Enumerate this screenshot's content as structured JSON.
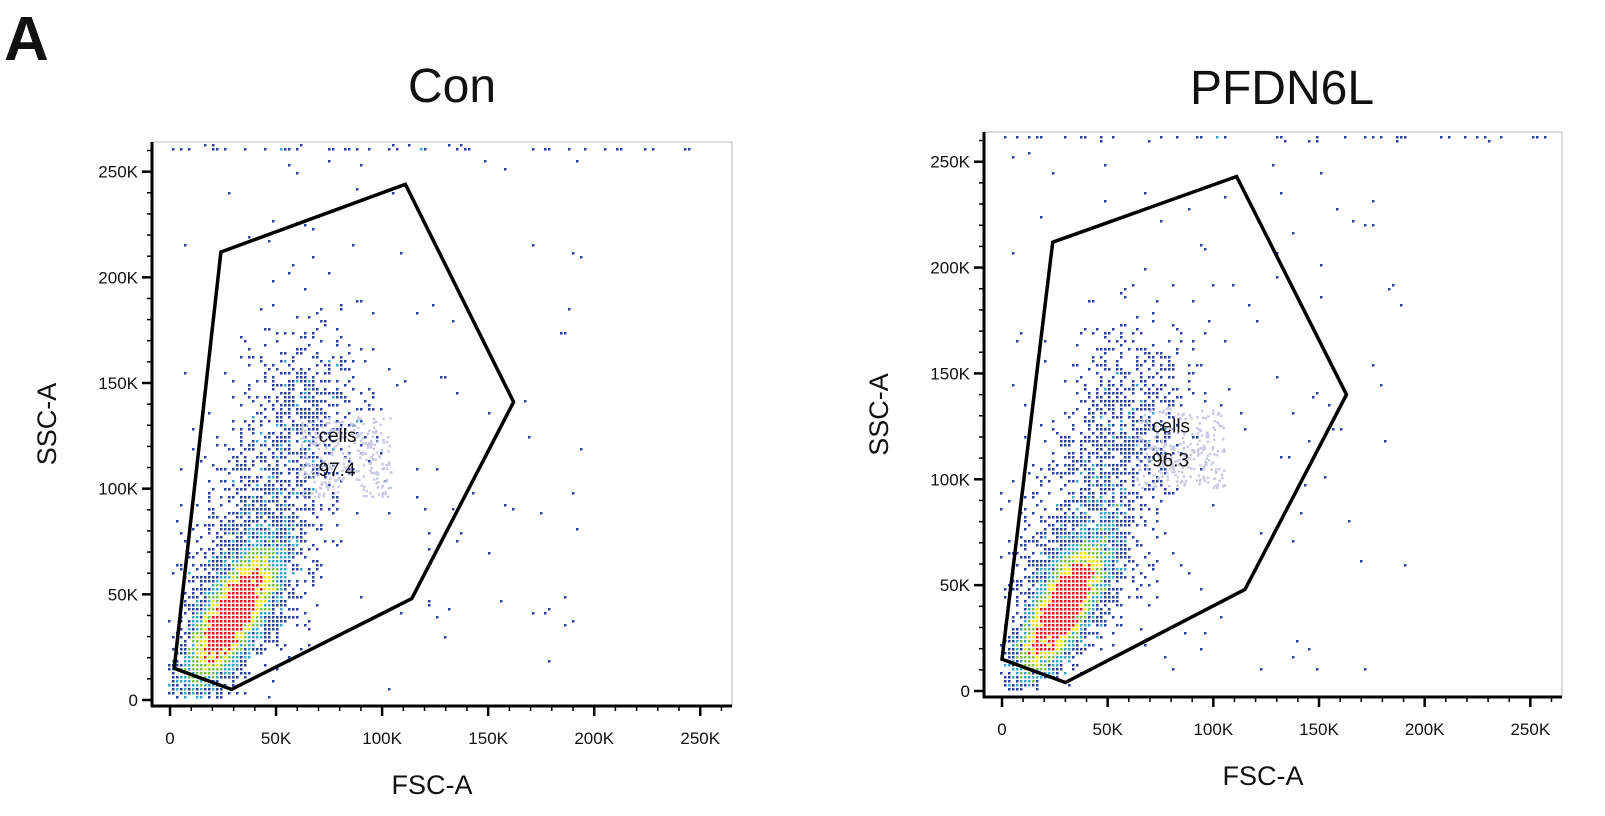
{
  "figure": {
    "panel_label": "A"
  },
  "colors": {
    "gate": "#000000",
    "axis": "#000000",
    "density_low": "#2b3fa0",
    "density_mid_low": "#3aa6c9",
    "density_mid": "#7cc24a",
    "density_mid_high": "#f2e01f",
    "density_high": "#e31a1c",
    "gate_label_dots": "#c9cbe3"
  },
  "chart_data": [
    {
      "type": "scatter",
      "title": "Con",
      "xlabel": "FSC-A",
      "ylabel": "SSC-A",
      "xlim": [
        0,
        262144
      ],
      "ylim": [
        0,
        262144
      ],
      "x_ticks": [
        {
          "value": 0,
          "label": "0"
        },
        {
          "value": 50000,
          "label": "50K"
        },
        {
          "value": 100000,
          "label": "100K"
        },
        {
          "value": 150000,
          "label": "150K"
        },
        {
          "value": 200000,
          "label": "200K"
        },
        {
          "value": 250000,
          "label": "250K"
        }
      ],
      "y_ticks": [
        {
          "value": 0,
          "label": "0"
        },
        {
          "value": 50000,
          "label": "50K"
        },
        {
          "value": 100000,
          "label": "100K"
        },
        {
          "value": 150000,
          "label": "150K"
        },
        {
          "value": 200000,
          "label": "200K"
        },
        {
          "value": 250000,
          "label": "250K"
        }
      ],
      "gate": {
        "name": "cells",
        "percent": "97.4",
        "label_position": [
          70000,
          122000
        ],
        "polygon": [
          [
            2000,
            15000
          ],
          [
            24000,
            212000
          ],
          [
            111000,
            244000
          ],
          [
            162000,
            141000
          ],
          [
            114000,
            48000
          ],
          [
            29000,
            5000
          ]
        ]
      },
      "population": {
        "center": [
          30000,
          40000
        ],
        "spread": [
          9000,
          14000
        ],
        "tail_direction": [
          0.6,
          1.0
        ],
        "seed": 7
      }
    },
    {
      "type": "scatter",
      "title": "PFDN6L",
      "xlabel": "FSC-A",
      "ylabel": "SSC-A",
      "xlim": [
        0,
        262144
      ],
      "ylim": [
        0,
        262144
      ],
      "x_ticks": [
        {
          "value": 0,
          "label": "0"
        },
        {
          "value": 50000,
          "label": "50K"
        },
        {
          "value": 100000,
          "label": "100K"
        },
        {
          "value": 150000,
          "label": "150K"
        },
        {
          "value": 200000,
          "label": "200K"
        },
        {
          "value": 250000,
          "label": "250K"
        }
      ],
      "y_ticks": [
        {
          "value": 0,
          "label": "0"
        },
        {
          "value": 50000,
          "label": "50K"
        },
        {
          "value": 100000,
          "label": "100K"
        },
        {
          "value": 150000,
          "label": "150K"
        },
        {
          "value": 200000,
          "label": "200K"
        },
        {
          "value": 250000,
          "label": "250K"
        }
      ],
      "gate": {
        "name": "cells",
        "percent": "96.3",
        "label_position": [
          71000,
          122000
        ],
        "polygon": [
          [
            0,
            15000
          ],
          [
            24000,
            212000
          ],
          [
            111000,
            243000
          ],
          [
            163000,
            140000
          ],
          [
            115000,
            48000
          ],
          [
            30000,
            4000
          ]
        ]
      },
      "population": {
        "center": [
          29000,
          39000
        ],
        "spread": [
          8500,
          13500
        ],
        "tail_direction": [
          0.6,
          1.0
        ],
        "seed": 13
      }
    }
  ]
}
